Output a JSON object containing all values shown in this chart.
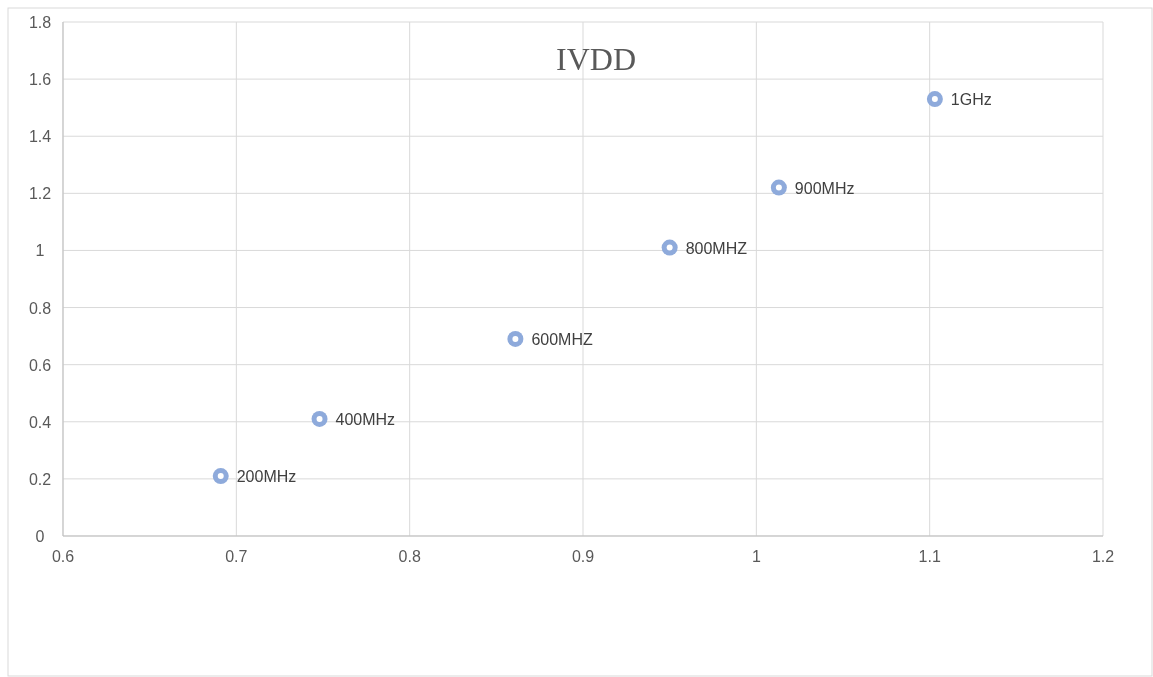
{
  "chart_data": {
    "type": "scatter",
    "title": "IVDD",
    "x": [
      0.691,
      0.748,
      0.861,
      0.95,
      1.013,
      1.103
    ],
    "values": [
      0.21,
      0.41,
      0.69,
      1.01,
      1.22,
      1.53
    ],
    "color": "#8eaadb",
    "xlim": [
      0.6,
      1.2
    ],
    "xticks": [
      0.6,
      0.7,
      0.8,
      0.9,
      1,
      1.1,
      1.2
    ],
    "ylim": [
      0,
      1.8
    ],
    "yticks": [
      0,
      0.2,
      0.4,
      0.6,
      0.8,
      1,
      1.2,
      1.4,
      1.6,
      1.8
    ],
    "grid": true,
    "marker": "circle",
    "annotations": [
      {
        "text": "200MHz",
        "x": 0.691,
        "y": 0.21
      },
      {
        "text": "400MHz",
        "x": 0.748,
        "y": 0.41
      },
      {
        "text": "600MHZ",
        "x": 0.861,
        "y": 0.69
      },
      {
        "text": "800MHZ",
        "x": 0.95,
        "y": 1.01
      },
      {
        "text": "900MHz",
        "x": 1.013,
        "y": 1.22
      },
      {
        "text": "1GHz",
        "x": 1.103,
        "y": 1.53
      }
    ]
  }
}
